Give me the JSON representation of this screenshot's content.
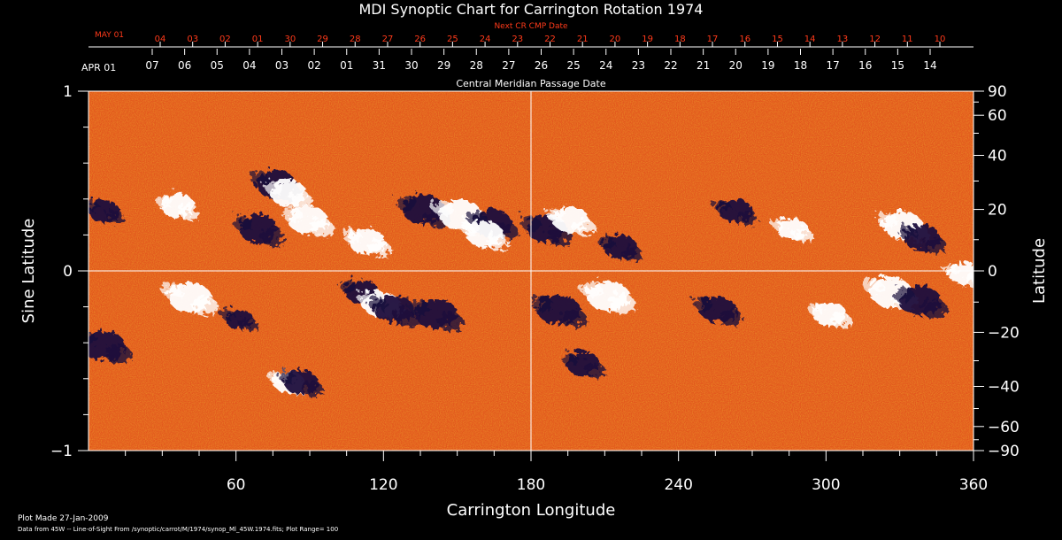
{
  "chart_data": {
    "type": "heatmap",
    "title": "MDI Synoptic Chart for Carrington Rotation 1974",
    "next_cr_label": "Next CR CMP Date",
    "next_cr_start": "MAY 01",
    "next_cr_dates": [
      "04",
      "03",
      "02",
      "01",
      "30",
      "29",
      "28",
      "27",
      "26",
      "25",
      "24",
      "23",
      "22",
      "21",
      "20",
      "19",
      "18",
      "17",
      "16",
      "15",
      "14",
      "13",
      "12",
      "11",
      "10"
    ],
    "cmp_start": "APR 01",
    "cmp_dates": [
      "07",
      "06",
      "05",
      "04",
      "03",
      "02",
      "01",
      "31",
      "30",
      "29",
      "28",
      "27",
      "26",
      "25",
      "24",
      "23",
      "22",
      "21",
      "20",
      "19",
      "18",
      "17",
      "16",
      "15",
      "14"
    ],
    "cmp_label": "Central Meridian Passage Date",
    "xlabel": "Carrington Longitude",
    "ylabel_left": "Sine Latitude",
    "ylabel_right": "Latitude",
    "xlim": [
      0,
      360
    ],
    "ylim": [
      -1,
      1
    ],
    "x_ticks": [
      60,
      120,
      180,
      240,
      300,
      360
    ],
    "y_ticks_left": [
      {
        "label": "1",
        "value": 1
      },
      {
        "label": "0",
        "value": 0
      },
      {
        "label": "−1",
        "value": -1
      }
    ],
    "y_ticks_right": [
      {
        "label": "90",
        "value": 90
      },
      {
        "label": "60",
        "value": 60
      },
      {
        "label": "40",
        "value": 40
      },
      {
        "label": "20",
        "value": 20
      },
      {
        "label": "0",
        "value": 0
      },
      {
        "label": "−20",
        "value": -20
      },
      {
        "label": "−40",
        "value": -40
      },
      {
        "label": "−60",
        "value": -60
      },
      {
        "label": "−90",
        "value": -90
      }
    ],
    "crosshair": {
      "longitude": 180,
      "sine_latitude": 0
    },
    "background_color": "#e0501a",
    "colors": {
      "positive": "#ffffff",
      "negative": "#1a0a3c",
      "neutral": "#e0501a"
    },
    "regions": [
      {
        "lon": 5,
        "sinlat": 0.35,
        "polarity": "negative",
        "strength": 0.6
      },
      {
        "lon": 35,
        "sinlat": 0.38,
        "polarity": "positive",
        "strength": 0.7
      },
      {
        "lon": 40,
        "sinlat": -0.13,
        "polarity": "positive",
        "strength": 1.0
      },
      {
        "lon": 5,
        "sinlat": -0.4,
        "polarity": "negative",
        "strength": 1.0
      },
      {
        "lon": 75,
        "sinlat": 0.5,
        "polarity": "negative",
        "strength": 0.9
      },
      {
        "lon": 80,
        "sinlat": 0.45,
        "polarity": "positive",
        "strength": 0.8
      },
      {
        "lon": 68,
        "sinlat": 0.25,
        "polarity": "negative",
        "strength": 0.9
      },
      {
        "lon": 88,
        "sinlat": 0.3,
        "polarity": "positive",
        "strength": 0.9
      },
      {
        "lon": 112,
        "sinlat": 0.18,
        "polarity": "positive",
        "strength": 0.8
      },
      {
        "lon": 110,
        "sinlat": -0.1,
        "polarity": "negative",
        "strength": 0.7
      },
      {
        "lon": 118,
        "sinlat": -0.17,
        "polarity": "positive",
        "strength": 0.8
      },
      {
        "lon": 123,
        "sinlat": -0.2,
        "polarity": "negative",
        "strength": 0.9
      },
      {
        "lon": 135,
        "sinlat": 0.36,
        "polarity": "negative",
        "strength": 1.0
      },
      {
        "lon": 150,
        "sinlat": 0.33,
        "polarity": "positive",
        "strength": 1.0
      },
      {
        "lon": 163,
        "sinlat": 0.28,
        "polarity": "negative",
        "strength": 0.9
      },
      {
        "lon": 160,
        "sinlat": 0.22,
        "polarity": "positive",
        "strength": 0.8
      },
      {
        "lon": 140,
        "sinlat": -0.22,
        "polarity": "negative",
        "strength": 1.0
      },
      {
        "lon": 185,
        "sinlat": 0.25,
        "polarity": "negative",
        "strength": 0.9
      },
      {
        "lon": 195,
        "sinlat": 0.3,
        "polarity": "positive",
        "strength": 0.8
      },
      {
        "lon": 190,
        "sinlat": -0.2,
        "polarity": "negative",
        "strength": 1.0
      },
      {
        "lon": 210,
        "sinlat": -0.12,
        "polarity": "positive",
        "strength": 1.0
      },
      {
        "lon": 215,
        "sinlat": 0.15,
        "polarity": "negative",
        "strength": 0.7
      },
      {
        "lon": 200,
        "sinlat": -0.5,
        "polarity": "negative",
        "strength": 0.7
      },
      {
        "lon": 255,
        "sinlat": -0.2,
        "polarity": "negative",
        "strength": 0.8
      },
      {
        "lon": 262,
        "sinlat": 0.35,
        "polarity": "negative",
        "strength": 0.7
      },
      {
        "lon": 285,
        "sinlat": 0.25,
        "polarity": "positive",
        "strength": 0.6
      },
      {
        "lon": 325,
        "sinlat": -0.1,
        "polarity": "positive",
        "strength": 1.0
      },
      {
        "lon": 337,
        "sinlat": -0.15,
        "polarity": "negative",
        "strength": 1.0
      },
      {
        "lon": 330,
        "sinlat": 0.27,
        "polarity": "positive",
        "strength": 0.9
      },
      {
        "lon": 338,
        "sinlat": 0.2,
        "polarity": "negative",
        "strength": 0.8
      },
      {
        "lon": 355,
        "sinlat": 0.0,
        "polarity": "positive",
        "strength": 0.6
      },
      {
        "lon": 300,
        "sinlat": -0.22,
        "polarity": "positive",
        "strength": 0.7
      },
      {
        "lon": 60,
        "sinlat": -0.25,
        "polarity": "negative",
        "strength": 0.5
      },
      {
        "lon": 80,
        "sinlat": -0.6,
        "polarity": "positive",
        "strength": 0.6
      },
      {
        "lon": 85,
        "sinlat": -0.6,
        "polarity": "negative",
        "strength": 0.7
      }
    ]
  },
  "footer": {
    "plot_made": "Plot Made 27-Jan-2009",
    "data_note": "Data from 45W -- Line-of-Sight From /synoptic/carrot/M/1974/synop_Ml_45W.1974.fits; Plot Range=  100"
  }
}
